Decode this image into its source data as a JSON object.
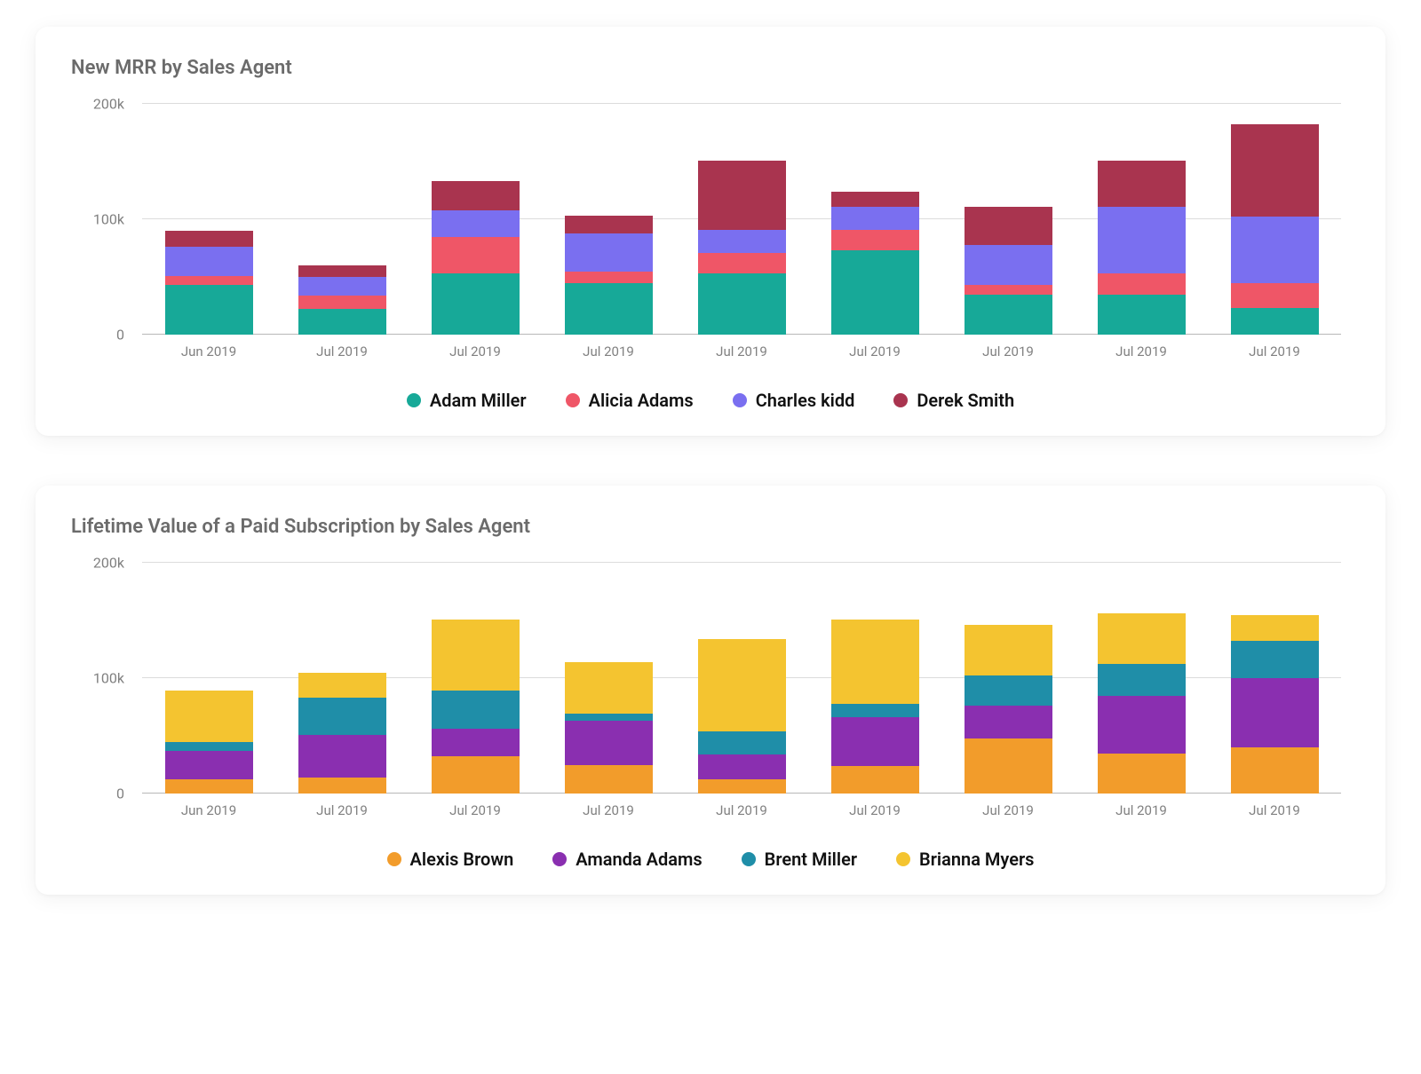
{
  "page": {
    "background_color": "#ffffff",
    "card_background": "#ffffff",
    "card_shadow": "0 4px 24px rgba(0,0,0,0.06)",
    "grid_color": "#dcdcdc",
    "axis_color": "#b8b8b8",
    "title_color": "#6b6b6b",
    "tick_color": "#808080",
    "legend_text_color": "#111111",
    "title_fontsize": 22,
    "tick_fontsize": 16,
    "legend_fontsize": 20,
    "bar_width_ratio": 0.66
  },
  "charts": [
    {
      "id": "mrr",
      "title": "New MRR by Sales Agent",
      "type": "stacked-bar",
      "y": {
        "min": 0,
        "max": 200000,
        "ticks": [
          0,
          100000,
          200000
        ],
        "tick_labels": [
          "0",
          "100k",
          "200k"
        ]
      },
      "categories": [
        "Jun 2019",
        "Jul 2019",
        "Jul 2019",
        "Jul 2019",
        "Jul 2019",
        "Jul 2019",
        "Jul 2019",
        "Jul 2019",
        "Jul 2019"
      ],
      "series": [
        {
          "name": "Adam Miller",
          "color": "#17a998"
        },
        {
          "name": "Alicia Adams",
          "color": "#ef5667"
        },
        {
          "name": "Charles kidd",
          "color": "#7a6ff0"
        },
        {
          "name": "Derek Smith",
          "color": "#a9344f"
        }
      ],
      "stacks": [
        [
          43000,
          8000,
          25000,
          14000
        ],
        [
          22000,
          12000,
          16000,
          10000
        ],
        [
          53000,
          32000,
          23000,
          25000
        ],
        [
          45000,
          10000,
          33000,
          15000
        ],
        [
          53000,
          18000,
          20000,
          60000
        ],
        [
          73000,
          18000,
          20000,
          13000
        ],
        [
          35000,
          8000,
          35000,
          33000
        ],
        [
          35000,
          18000,
          58000,
          40000
        ],
        [
          23000,
          22000,
          57000,
          80000
        ]
      ]
    },
    {
      "id": "ltv",
      "title": "Lifetime Value of a Paid Subscription by Sales Agent",
      "type": "stacked-bar",
      "y": {
        "min": 0,
        "max": 200000,
        "ticks": [
          0,
          100000,
          200000
        ],
        "tick_labels": [
          "0",
          "100k",
          "200k"
        ]
      },
      "categories": [
        "Jun 2019",
        "Jul 2019",
        "Jul 2019",
        "Jul 2019",
        "Jul 2019",
        "Jul 2019",
        "Jul 2019",
        "Jul 2019",
        "Jul 2019"
      ],
      "series": [
        {
          "name": "Alexis Brown",
          "color": "#f29c2b"
        },
        {
          "name": "Amanda Adams",
          "color": "#8a2fb0"
        },
        {
          "name": "Brent Miller",
          "color": "#1f8ea8"
        },
        {
          "name": "Brianna Myers",
          "color": "#f4c430"
        }
      ],
      "stacks": [
        [
          12000,
          25000,
          8000,
          44000
        ],
        [
          14000,
          37000,
          32000,
          22000
        ],
        [
          32000,
          24000,
          33000,
          62000
        ],
        [
          25000,
          38000,
          6000,
          45000
        ],
        [
          12000,
          22000,
          20000,
          80000
        ],
        [
          24000,
          42000,
          12000,
          73000
        ],
        [
          48000,
          28000,
          26000,
          44000
        ],
        [
          35000,
          50000,
          27000,
          44000
        ],
        [
          40000,
          60000,
          32000,
          23000
        ]
      ]
    }
  ]
}
